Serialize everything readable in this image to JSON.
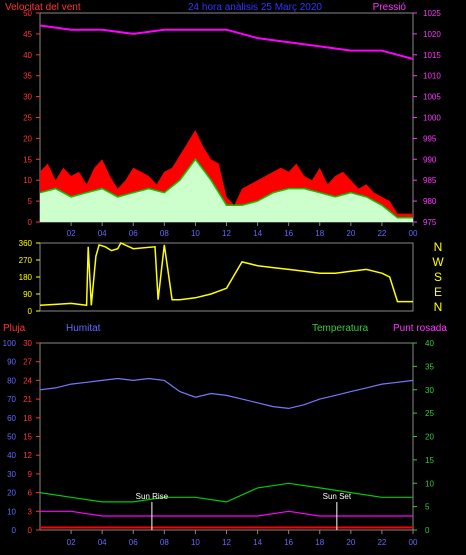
{
  "colors": {
    "wind": "#ff0000",
    "wind_avg": "#00cc00",
    "wind_fill": "#ffffff",
    "wind_fill2": "#ccffcc",
    "pressure": "#ff00ff",
    "direction": "#ffff00",
    "axis_red": "#ff3333",
    "axis_magenta": "#ff33ff",
    "axis_blue": "#6666ff",
    "axis_green": "#33cc33",
    "humidity": "#7777ff",
    "temperature": "#00cc00",
    "dewpoint": "#ff00ff",
    "rain": "#ff0000",
    "title": "#3333ff"
  },
  "chart_data": [
    {
      "type": "line",
      "title": "24 hora anàlisis   25 Març 2020",
      "left_label": "Velocitat del vent",
      "right_label": "Pressió",
      "ylim_left": [
        0,
        50
      ],
      "ylim_right": [
        975,
        1025
      ],
      "y_left_ticks": [
        "0",
        "5",
        "10",
        "15",
        "20",
        "25",
        "30",
        "35",
        "40",
        "45",
        "50"
      ],
      "y_right_ticks": [
        "975",
        "980",
        "985",
        "990",
        "995",
        "1000",
        "1005",
        "1010",
        "1015",
        "1020",
        "1025"
      ],
      "x_ticks": [
        "02",
        "04",
        "06",
        "08",
        "10",
        "12",
        "14",
        "16",
        "18",
        "20",
        "22",
        "00"
      ],
      "series": [
        {
          "key": "pressure",
          "x": [
            0,
            2,
            4,
            6,
            8,
            10,
            12,
            14,
            16,
            18,
            20,
            22,
            23,
            24
          ],
          "y": [
            1022,
            1021,
            1021,
            1020,
            1021,
            1021,
            1021,
            1019,
            1018,
            1017,
            1016,
            1016,
            1015,
            1014
          ]
        },
        {
          "key": "wind_max",
          "x": [
            0,
            0.5,
            1,
            1.5,
            2,
            2.5,
            3,
            3.5,
            4,
            4.5,
            5,
            5.5,
            6,
            6.5,
            7,
            7.5,
            8,
            8.5,
            9,
            9.5,
            10,
            10.5,
            11,
            11.5,
            12,
            12.5,
            13,
            13.5,
            14,
            14.5,
            15,
            15.5,
            16,
            16.5,
            17,
            17.5,
            18,
            18.5,
            19,
            19.5,
            20,
            20.5,
            21,
            21.5,
            22,
            22.5,
            23,
            23.5,
            24
          ],
          "y": [
            12,
            14,
            10,
            13,
            11,
            12,
            9,
            13,
            15,
            11,
            8,
            10,
            13,
            12,
            11,
            9,
            12,
            13,
            16,
            19,
            22,
            18,
            15,
            14,
            6,
            4,
            8,
            9,
            10,
            11,
            12,
            13,
            12,
            14,
            11,
            10,
            13,
            9,
            11,
            12,
            10,
            8,
            9,
            7,
            6,
            5,
            2,
            2,
            2
          ]
        },
        {
          "key": "wind_avg",
          "x": [
            0,
            1,
            2,
            3,
            4,
            5,
            6,
            7,
            8,
            9,
            10,
            11,
            12,
            13,
            14,
            15,
            16,
            17,
            18,
            19,
            20,
            21,
            22,
            23,
            24
          ],
          "y": [
            7,
            8,
            6,
            7,
            8,
            6,
            7,
            8,
            7,
            10,
            15,
            10,
            4,
            4,
            5,
            7,
            8,
            8,
            7,
            6,
            7,
            6,
            4,
            1,
            1
          ]
        }
      ]
    },
    {
      "type": "line",
      "title": "",
      "left_label": "",
      "right_label": "N W S E N",
      "ylim": [
        0,
        360
      ],
      "y_ticks": [
        "0",
        "90",
        "180",
        "270",
        "360"
      ],
      "compass": [
        "N",
        "W",
        "S",
        "E",
        "N"
      ],
      "series": [
        {
          "key": "direction",
          "x": [
            0,
            1,
            2,
            3,
            3.1,
            3.3,
            3.6,
            3.8,
            4.2,
            4.6,
            5,
            5.2,
            6,
            7.4,
            7.6,
            8,
            8.5,
            9,
            10,
            11,
            12,
            13,
            14,
            15,
            16,
            17,
            18,
            19,
            20,
            21,
            22,
            22.5,
            23,
            24
          ],
          "y": [
            30,
            35,
            40,
            30,
            340,
            30,
            290,
            350,
            340,
            320,
            330,
            360,
            330,
            340,
            60,
            350,
            60,
            60,
            70,
            90,
            120,
            260,
            240,
            230,
            220,
            210,
            200,
            200,
            210,
            220,
            200,
            180,
            50,
            50
          ]
        }
      ]
    },
    {
      "type": "line",
      "title": "",
      "labels": [
        "Pluja",
        "Humitat",
        "Temperatura",
        "Punt rosada"
      ],
      "ylim_humidity": [
        0,
        100
      ],
      "ylim_rain": [
        0,
        30
      ],
      "ylim_temp": [
        0,
        40
      ],
      "y_humidity_ticks": [
        "0",
        "10",
        "20",
        "30",
        "40",
        "50",
        "60",
        "70",
        "80",
        "90",
        "100"
      ],
      "y_rain_ticks": [
        "0",
        "3",
        "6",
        "9",
        "12",
        "15",
        "18",
        "21",
        "24",
        "27",
        "30"
      ],
      "y_temp_ticks": [
        "0",
        "5",
        "10",
        "15",
        "20",
        "25",
        "30",
        "35",
        "40"
      ],
      "annotations": [
        "Sun Rise",
        "Sun Set"
      ],
      "series": [
        {
          "key": "humidity",
          "x": [
            0,
            1,
            2,
            3,
            4,
            5,
            6,
            7,
            8,
            8.5,
            9,
            10,
            11,
            12,
            13,
            14,
            15,
            16,
            17,
            18,
            19,
            20,
            21,
            22,
            23,
            24
          ],
          "y": [
            75,
            76,
            78,
            79,
            80,
            81,
            80,
            81,
            80,
            77,
            74,
            71,
            73,
            72,
            70,
            68,
            66,
            65,
            67,
            70,
            72,
            74,
            76,
            78,
            79,
            80
          ]
        },
        {
          "key": "temperature",
          "x": [
            0,
            2,
            4,
            6,
            8,
            10,
            12,
            14,
            16,
            18,
            20,
            22,
            24
          ],
          "y": [
            8,
            7,
            6,
            6,
            7,
            7,
            6,
            9,
            10,
            9,
            8,
            7,
            7
          ]
        },
        {
          "key": "dewpoint",
          "x": [
            0,
            2,
            4,
            6,
            8,
            10,
            12,
            14,
            16,
            18,
            20,
            22,
            24
          ],
          "y": [
            4,
            4,
            3,
            3,
            3,
            3,
            3,
            3,
            4,
            3,
            3,
            3,
            3
          ]
        },
        {
          "key": "rain",
          "x": [
            0,
            24
          ],
          "y": [
            0.4,
            0.4
          ]
        }
      ]
    }
  ]
}
